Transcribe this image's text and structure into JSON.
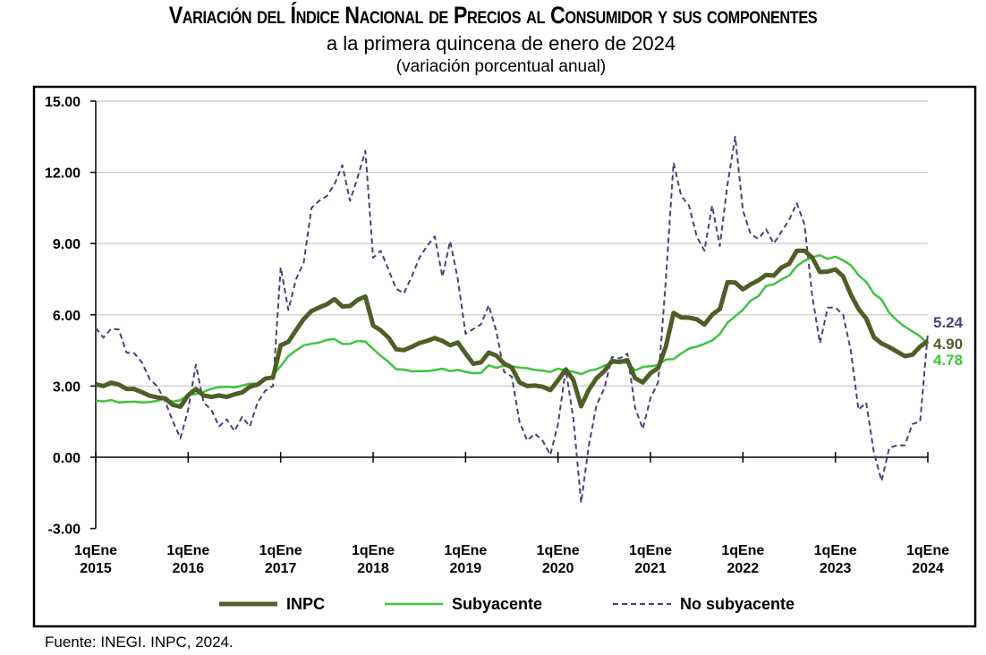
{
  "title": "Variación del Índice Nacional de Precios al Consumidor y sus componentes",
  "subtitle": "a la primera quincena de enero de 2024",
  "unit": "(variación porcentual anual)",
  "source": "Fuente: INEGI. INPC, 2024.",
  "colors": {
    "INPC": "#4f5e27",
    "Subyacente": "#3fc43f",
    "No subyacente": "#4e3f78"
  },
  "chart_data": {
    "type": "line",
    "title": "Variación del Índice Nacional de Precios al Consumidor y sus componentes",
    "ylim": [
      -3,
      15
    ],
    "yticks": [
      "15.00",
      "12.00",
      "9.00",
      "6.00",
      "3.00",
      "0.00",
      "-3.00"
    ],
    "ytick_values": [
      15,
      12,
      9,
      6,
      3,
      0,
      -3
    ],
    "xticks": [
      [
        "1qEne",
        "2015"
      ],
      [
        "1qEne",
        "2016"
      ],
      [
        "1qEne",
        "2017"
      ],
      [
        "1qEne",
        "2018"
      ],
      [
        "1qEne",
        "2019"
      ],
      [
        "1qEne",
        "2020"
      ],
      [
        "1qEne",
        "2021"
      ],
      [
        "1qEne",
        "2022"
      ],
      [
        "1qEne",
        "2023"
      ],
      [
        "1qEne",
        "2024"
      ]
    ],
    "x_start": "2015-01",
    "x_end": "2024-01",
    "x_frequency": "monthly",
    "grid": true,
    "legend_position": "bottom",
    "series": [
      {
        "name": "INPC",
        "style": "solid-thick",
        "end_label": "4.90",
        "values": [
          3.07,
          3.0,
          3.14,
          3.06,
          2.88,
          2.87,
          2.74,
          2.59,
          2.52,
          2.48,
          2.21,
          2.13,
          2.61,
          2.87,
          2.6,
          2.54,
          2.6,
          2.54,
          2.65,
          2.73,
          2.97,
          3.06,
          3.31,
          3.36,
          4.72,
          4.86,
          5.35,
          5.82,
          6.16,
          6.31,
          6.44,
          6.66,
          6.35,
          6.37,
          6.63,
          6.77,
          5.55,
          5.34,
          5.04,
          4.55,
          4.51,
          4.65,
          4.81,
          4.9,
          5.02,
          4.9,
          4.72,
          4.83,
          4.37,
          3.94,
          4.0,
          4.41,
          4.28,
          3.95,
          3.78,
          3.16,
          3.0,
          3.02,
          2.97,
          2.83,
          3.24,
          3.7,
          3.25,
          2.15,
          2.84,
          3.33,
          3.62,
          4.05,
          4.01,
          4.09,
          3.33,
          3.15,
          3.54,
          3.76,
          4.67,
          6.08,
          5.89,
          5.88,
          5.81,
          5.59,
          6.0,
          6.24,
          7.37,
          7.36,
          7.07,
          7.28,
          7.45,
          7.68,
          7.65,
          7.99,
          8.15,
          8.7,
          8.7,
          8.41,
          7.8,
          7.82,
          7.91,
          7.62,
          6.85,
          6.25,
          5.84,
          5.06,
          4.79,
          4.64,
          4.45,
          4.26,
          4.32,
          4.66,
          4.9
        ]
      },
      {
        "name": "Subyacente",
        "style": "solid",
        "end_label": "4.78",
        "values": [
          2.39,
          2.35,
          2.41,
          2.31,
          2.33,
          2.34,
          2.31,
          2.32,
          2.38,
          2.47,
          2.34,
          2.41,
          2.64,
          2.66,
          2.76,
          2.88,
          2.95,
          2.97,
          2.94,
          3.02,
          3.1,
          3.1,
          3.29,
          3.44,
          3.84,
          4.26,
          4.5,
          4.72,
          4.78,
          4.83,
          4.94,
          4.98,
          4.77,
          4.78,
          4.9,
          4.87,
          4.56,
          4.27,
          4.02,
          3.71,
          3.69,
          3.62,
          3.63,
          3.63,
          3.67,
          3.73,
          3.63,
          3.68,
          3.6,
          3.54,
          3.55,
          3.87,
          3.77,
          3.85,
          3.82,
          3.78,
          3.75,
          3.68,
          3.65,
          3.59,
          3.73,
          3.66,
          3.6,
          3.5,
          3.64,
          3.71,
          3.85,
          3.97,
          3.99,
          3.98,
          3.66,
          3.8,
          3.84,
          3.87,
          4.12,
          4.13,
          4.37,
          4.58,
          4.66,
          4.78,
          4.92,
          5.19,
          5.67,
          5.94,
          6.21,
          6.59,
          6.78,
          7.22,
          7.28,
          7.49,
          7.65,
          8.05,
          8.28,
          8.42,
          8.51,
          8.35,
          8.45,
          8.29,
          8.09,
          7.67,
          7.39,
          6.89,
          6.64,
          6.08,
          5.76,
          5.5,
          5.3,
          5.09,
          4.78
        ]
      },
      {
        "name": "No subyacente",
        "style": "dashed",
        "end_label": "5.24",
        "values": [
          5.44,
          5.04,
          5.41,
          5.38,
          4.41,
          4.38,
          3.99,
          3.29,
          2.98,
          2.36,
          1.52,
          0.8,
          2.0,
          3.9,
          2.3,
          2.0,
          1.3,
          1.6,
          1.1,
          1.7,
          1.3,
          2.3,
          2.8,
          3.0,
          8.0,
          6.2,
          7.5,
          8.2,
          10.5,
          10.8,
          11.0,
          11.5,
          12.3,
          10.8,
          11.8,
          12.9,
          8.4,
          8.7,
          7.9,
          7.1,
          6.9,
          7.6,
          8.4,
          8.9,
          9.3,
          7.6,
          9.1,
          7.5,
          5.2,
          5.4,
          5.6,
          6.4,
          5.3,
          3.6,
          3.4,
          1.5,
          0.7,
          1.0,
          0.7,
          0.1,
          1.4,
          3.7,
          1.6,
          -1.92,
          0.5,
          2.2,
          2.88,
          4.22,
          4.16,
          4.36,
          2.09,
          1.19,
          2.49,
          3.16,
          7.48,
          12.4,
          11.0,
          10.6,
          9.3,
          8.7,
          10.6,
          8.9,
          11.5,
          13.5,
          10.4,
          9.4,
          9.2,
          9.6,
          9.0,
          9.5,
          10.0,
          10.7,
          9.8,
          6.8,
          4.8,
          6.3,
          6.3,
          6.0,
          4.5,
          2.0,
          2.3,
          0.2,
          -1.0,
          0.4,
          0.5,
          0.5,
          1.4,
          1.5,
          5.24
        ]
      }
    ]
  }
}
